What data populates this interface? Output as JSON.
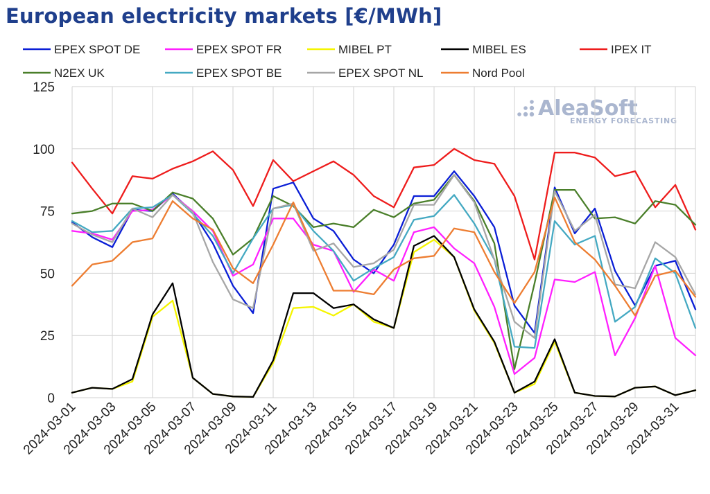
{
  "chart_data": {
    "type": "line",
    "title": "European electricity markets [€/MWh]",
    "xlabel": "",
    "ylabel": "",
    "ylim": [
      0,
      125
    ],
    "y_ticks": [
      "0",
      "25",
      "50",
      "75",
      "100",
      "125"
    ],
    "x": [
      "2024-03-01",
      "2024-03-02",
      "2024-03-03",
      "2024-03-04",
      "2024-03-05",
      "2024-03-06",
      "2024-03-07",
      "2024-03-08",
      "2024-03-09",
      "2024-03-10",
      "2024-03-11",
      "2024-03-12",
      "2024-03-13",
      "2024-03-14",
      "2024-03-15",
      "2024-03-16",
      "2024-03-17",
      "2024-03-18",
      "2024-03-19",
      "2024-03-20",
      "2024-03-21",
      "2024-03-22",
      "2024-03-23",
      "2024-03-24",
      "2024-03-25",
      "2024-03-26",
      "2024-03-27",
      "2024-03-28",
      "2024-03-29",
      "2024-03-30",
      "2024-03-31",
      "2024-04-01"
    ],
    "x_tick_labels": [
      "2024-03-01",
      "2024-03-03",
      "2024-03-05",
      "2024-03-07",
      "2024-03-09",
      "2024-03-11",
      "2024-03-13",
      "2024-03-15",
      "2024-03-17",
      "2024-03-19",
      "2024-03-21",
      "2024-03-23",
      "2024-03-25",
      "2024-03-27",
      "2024-03-29",
      "2024-03-31"
    ],
    "grid": true,
    "legend_position": "top",
    "series": [
      {
        "name": "EPEX SPOT DE",
        "color": "#0a1ed6",
        "values": [
          70.5,
          64.5,
          60.5,
          75.5,
          75.0,
          82.0,
          74.5,
          62.0,
          45.0,
          34.0,
          84.0,
          86.5,
          72.0,
          67.0,
          55.5,
          50.0,
          61.5,
          81.0,
          81.0,
          91.0,
          81.0,
          68.5,
          37.0,
          26.0,
          84.5,
          66.0,
          76.0,
          51.0,
          37.0,
          53.0,
          55.0,
          35.5
        ]
      },
      {
        "name": "EPEX SPOT FR",
        "color": "#ff1fff",
        "values": [
          67.0,
          66.0,
          63.5,
          75.0,
          75.5,
          81.5,
          75.0,
          67.0,
          49.0,
          53.5,
          72.0,
          72.0,
          61.5,
          59.0,
          42.5,
          51.5,
          47.0,
          66.5,
          68.5,
          60.0,
          54.0,
          36.5,
          9.5,
          16.0,
          47.5,
          46.5,
          50.5,
          17.0,
          32.0,
          53.0,
          24.0,
          17.0
        ]
      },
      {
        "name": "MIBEL PT",
        "color": "#f5f500",
        "values": [
          2.0,
          4.0,
          3.5,
          6.5,
          32.5,
          39.0,
          8.0,
          1.5,
          0.5,
          0.3,
          14.0,
          36.0,
          36.5,
          33.0,
          37.5,
          30.5,
          28.0,
          58.5,
          63.5,
          56.5,
          35.0,
          22.0,
          2.0,
          5.5,
          22.5,
          2.0,
          0.7,
          0.5,
          4.0,
          4.5,
          1.0,
          3.0
        ]
      },
      {
        "name": "MIBEL ES",
        "color": "#000000",
        "values": [
          2.0,
          4.0,
          3.5,
          7.5,
          33.5,
          46.0,
          8.0,
          1.5,
          0.5,
          0.3,
          15.0,
          42.0,
          42.0,
          36.0,
          37.5,
          31.5,
          28.0,
          61.0,
          65.0,
          56.5,
          35.5,
          22.5,
          2.0,
          6.5,
          23.5,
          2.0,
          0.7,
          0.5,
          4.0,
          4.5,
          1.0,
          3.0
        ]
      },
      {
        "name": "IPEX IT",
        "color": "#ee1c1c",
        "values": [
          94.5,
          84.0,
          74.0,
          89.0,
          88.0,
          92.0,
          95.0,
          99.0,
          91.5,
          77.0,
          95.5,
          87.0,
          91.0,
          95.0,
          89.5,
          81.0,
          76.5,
          92.5,
          93.5,
          100.0,
          95.5,
          94.0,
          81.0,
          55.5,
          98.5,
          98.5,
          96.5,
          89.0,
          91.0,
          76.5,
          85.5,
          67.5
        ]
      },
      {
        "name": "N2EX UK",
        "color": "#4a7f2a",
        "values": [
          74.0,
          75.0,
          78.0,
          78.0,
          75.0,
          82.5,
          80.0,
          72.0,
          57.5,
          64.0,
          81.0,
          77.0,
          68.5,
          70.0,
          68.5,
          75.5,
          72.5,
          78.0,
          79.5,
          89.5,
          79.0,
          62.0,
          11.5,
          46.0,
          83.5,
          83.5,
          72.0,
          72.5,
          70.0,
          79.0,
          77.5,
          69.5
        ]
      },
      {
        "name": "EPEX SPOT BE",
        "color": "#44a9c2",
        "values": [
          71.0,
          66.5,
          67.0,
          76.0,
          76.5,
          81.5,
          74.0,
          65.0,
          50.0,
          64.0,
          76.0,
          77.5,
          67.0,
          59.0,
          47.0,
          52.0,
          56.5,
          71.5,
          73.0,
          81.5,
          70.0,
          55.5,
          20.5,
          20.0,
          71.0,
          61.5,
          65.0,
          30.5,
          36.5,
          56.0,
          50.0,
          28.0
        ]
      },
      {
        "name": "EPEX SPOT NL",
        "color": "#a6a6a6",
        "values": [
          70.0,
          65.5,
          62.5,
          76.0,
          72.5,
          81.5,
          74.5,
          54.5,
          39.5,
          36.0,
          76.0,
          78.0,
          59.0,
          62.0,
          52.5,
          54.0,
          59.5,
          77.5,
          77.5,
          89.5,
          78.5,
          55.5,
          30.5,
          24.0,
          83.0,
          67.0,
          73.5,
          45.5,
          44.0,
          62.5,
          56.5,
          41.5
        ]
      },
      {
        "name": "Nord Pool",
        "color": "#ed7d31",
        "values": [
          45.0,
          53.5,
          55.0,
          62.5,
          64.0,
          79.0,
          72.0,
          67.5,
          52.0,
          46.0,
          61.5,
          78.5,
          60.5,
          43.0,
          43.0,
          41.5,
          51.5,
          56.0,
          57.0,
          68.0,
          66.5,
          50.5,
          38.0,
          50.5,
          80.5,
          62.5,
          55.5,
          45.0,
          33.0,
          49.0,
          51.0,
          40.5
        ]
      }
    ]
  },
  "logo": {
    "main": "AleaSoft",
    "sub": "ENERGY FORECASTING"
  }
}
